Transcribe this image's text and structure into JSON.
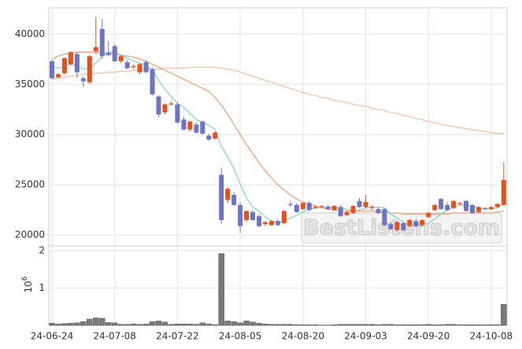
{
  "chart_data": [
    {
      "type": "candlestick",
      "watermark": "BestListens.com",
      "up_color": "#e2521f",
      "down_color": "#6f74c0",
      "open": [
        37300,
        35700,
        36100,
        37000,
        38000,
        35600,
        35200,
        38300,
        40500,
        38100,
        38800,
        37300,
        37200,
        36700,
        36200,
        37200,
        36500,
        33800,
        32200,
        33000,
        33000,
        31500,
        30500,
        31000,
        31300,
        29900,
        29600,
        26000,
        23500,
        24000,
        23000,
        21500,
        22300,
        21900,
        21100,
        21000,
        21400,
        21200,
        23100,
        23000,
        22600,
        23200,
        22700,
        22800,
        22800,
        22500,
        22800,
        22000,
        22200,
        23400,
        22800,
        22700,
        22600,
        22600,
        21100,
        20500,
        21200,
        20900,
        21400,
        21000,
        21800,
        22500,
        23600,
        23000,
        22700,
        23100,
        23400,
        23000,
        22300,
        22700,
        22600,
        22800,
        23000
      ],
      "high": [
        37400,
        36100,
        37700,
        38300,
        38200,
        35800,
        37900,
        41700,
        41500,
        39300,
        39000,
        37900,
        37400,
        37000,
        37100,
        37400,
        36700,
        33900,
        33100,
        33300,
        33200,
        31800,
        31400,
        31200,
        31400,
        30100,
        30300,
        26700,
        24800,
        24300,
        23300,
        22500,
        22500,
        22100,
        21400,
        21500,
        21600,
        22500,
        23400,
        23200,
        23300,
        23400,
        23000,
        23000,
        23000,
        23000,
        23000,
        22400,
        23000,
        23700,
        24000,
        23000,
        22800,
        22700,
        21300,
        21400,
        21300,
        21600,
        21600,
        21600,
        22300,
        23100,
        23700,
        23300,
        23500,
        23300,
        23500,
        23100,
        22900,
        22800,
        22900,
        23200,
        27300
      ],
      "low": [
        35500,
        35600,
        35900,
        36900,
        35600,
        34700,
        35000,
        38000,
        37500,
        37800,
        37200,
        37100,
        36500,
        36500,
        36000,
        36100,
        33900,
        31700,
        32000,
        32900,
        31100,
        30400,
        30300,
        30100,
        30000,
        29400,
        29500,
        21100,
        23200,
        22900,
        20200,
        21300,
        21400,
        20800,
        20900,
        20900,
        20900,
        21100,
        22800,
        22200,
        22500,
        22400,
        22600,
        22700,
        22500,
        22400,
        21800,
        21900,
        22100,
        22700,
        22700,
        22500,
        22100,
        20900,
        20500,
        20400,
        20400,
        20800,
        20800,
        20900,
        21700,
        22400,
        22500,
        22400,
        22600,
        23000,
        22300,
        22100,
        22200,
        22500,
        22500,
        22700,
        22900
      ],
      "close": [
        35600,
        36000,
        37600,
        38200,
        36200,
        35300,
        37800,
        38700,
        37800,
        37900,
        37300,
        37800,
        36600,
        36800,
        37000,
        36200,
        34000,
        32000,
        33000,
        33100,
        31200,
        30500,
        31300,
        30200,
        30100,
        29500,
        30200,
        21500,
        24600,
        23000,
        20900,
        22400,
        21500,
        20900,
        21300,
        21400,
        21000,
        22400,
        23000,
        22300,
        23200,
        22500,
        22800,
        22900,
        22600,
        22900,
        21900,
        22300,
        22900,
        22800,
        23300,
        22800,
        22200,
        21000,
        20600,
        21300,
        20500,
        21500,
        20900,
        21500,
        22200,
        23000,
        22600,
        22500,
        23400,
        23200,
        22400,
        22200,
        22800,
        22600,
        22800,
        23100,
        25500
      ],
      "series": [
        {
          "color": "#f0c4a6",
          "values": [
            35500,
            35600,
            35700,
            35800,
            35900,
            36000,
            36000,
            36100,
            36100,
            36200,
            36200,
            36300,
            36300,
            36400,
            36400,
            36500,
            36500,
            36500,
            36600,
            36600,
            36600,
            36600,
            36700,
            36700,
            36700,
            36700,
            36700,
            36600,
            36500,
            36400,
            36200,
            36000,
            35800,
            35600,
            35400,
            35200,
            35000,
            34800,
            34600,
            34400,
            34200,
            34000,
            33900,
            33700,
            33600,
            33400,
            33300,
            33200,
            33000,
            32900,
            32800,
            32600,
            32500,
            32400,
            32200,
            32100,
            31900,
            31800,
            31600,
            31500,
            31300,
            31200,
            31000,
            30900,
            30800,
            30700,
            30600,
            30500,
            30400,
            30300,
            30200,
            30100,
            30100
          ]
        },
        {
          "color": "#e9a47e",
          "values": [
            37500,
            37800,
            38000,
            38100,
            38200,
            38200,
            38200,
            38200,
            38200,
            38100,
            38000,
            37900,
            37800,
            37700,
            37500,
            37300,
            37000,
            36700,
            36400,
            36100,
            35800,
            35500,
            35200,
            34900,
            34600,
            34300,
            33700,
            32900,
            32000,
            31000,
            30000,
            29000,
            28100,
            27200,
            26400,
            25700,
            25000,
            24500,
            24000,
            23600,
            23300,
            23100,
            22900,
            22700,
            22600,
            22500,
            22500,
            22400,
            22400,
            22400,
            22400,
            22400,
            22300,
            22300,
            22200,
            22200,
            22100,
            22100,
            22100,
            22100,
            22100,
            22100,
            22100,
            22100,
            22200,
            22200,
            22200,
            22200,
            22200,
            22200,
            22200,
            22300,
            22400
          ]
        },
        {
          "color": "#86d7bf",
          "values": [
            36800,
            36600,
            36800,
            37000,
            36900,
            36500,
            36600,
            37100,
            37800,
            38200,
            38200,
            37900,
            37600,
            37300,
            37100,
            36900,
            36400,
            35400,
            34500,
            33800,
            33100,
            32700,
            32100,
            31500,
            31200,
            30900,
            30500,
            28800,
            27800,
            26600,
            25100,
            23700,
            22800,
            22400,
            21800,
            21400,
            21300,
            21400,
            21700,
            22000,
            22300,
            22600,
            22700,
            22800,
            22800,
            22800,
            22700,
            22600,
            22400,
            22500,
            22700,
            22800,
            22800,
            22700,
            22100,
            21700,
            21300,
            21000,
            20900,
            21000,
            21200,
            21600,
            22100,
            22500,
            22800,
            23000,
            23000,
            22900,
            22700,
            22600,
            22600,
            22700,
            23200
          ]
        }
      ],
      "ylim": [
        19000,
        42600
      ],
      "yticks": [
        20000,
        25000,
        30000,
        35000,
        40000
      ],
      "grid": true
    },
    {
      "type": "bar",
      "color": "#7a7a7a",
      "ylabel": "10",
      "ylabel_exponent": "6",
      "categories": [
        "24-06-24",
        null,
        null,
        null,
        null,
        null,
        null,
        null,
        null,
        null,
        "24-07-08",
        null,
        null,
        null,
        null,
        null,
        null,
        null,
        null,
        null,
        "24-07-22",
        null,
        null,
        null,
        null,
        null,
        null,
        null,
        null,
        null,
        "24-08-05",
        null,
        null,
        null,
        null,
        null,
        null,
        null,
        null,
        null,
        "24-08-20",
        null,
        null,
        null,
        null,
        null,
        null,
        null,
        null,
        null,
        "24-09-03",
        null,
        null,
        null,
        null,
        null,
        null,
        null,
        null,
        null,
        "24-09-20",
        null,
        null,
        null,
        null,
        null,
        null,
        null,
        null,
        null,
        "24-10-08",
        null,
        null
      ],
      "values": [
        0.06,
        0.04,
        0.05,
        0.06,
        0.07,
        0.1,
        0.17,
        0.2,
        0.19,
        0.08,
        0.07,
        0.03,
        0.03,
        0.04,
        0.03,
        0.04,
        0.1,
        0.12,
        0.09,
        0.03,
        0.04,
        0.04,
        0.04,
        0.03,
        0.07,
        0.04,
        0.02,
        1.92,
        0.12,
        0.1,
        0.07,
        0.12,
        0.09,
        0.06,
        0.04,
        0.03,
        0.03,
        0.03,
        0.03,
        0.02,
        0.02,
        0.02,
        0.02,
        0.01,
        0.01,
        0.02,
        0.03,
        0.03,
        0.03,
        0.03,
        0.03,
        0.03,
        0.02,
        0.03,
        0.03,
        0.02,
        0.02,
        0.02,
        0.02,
        0.02,
        0.03,
        0.02,
        0.02,
        0.03,
        0.03,
        0.02,
        0.02,
        0.02,
        0.02,
        0.02,
        0.02,
        0.02,
        0.56
      ],
      "ylim": [
        0,
        2.1
      ],
      "yticks": [
        1,
        2
      ],
      "grid": true
    }
  ]
}
